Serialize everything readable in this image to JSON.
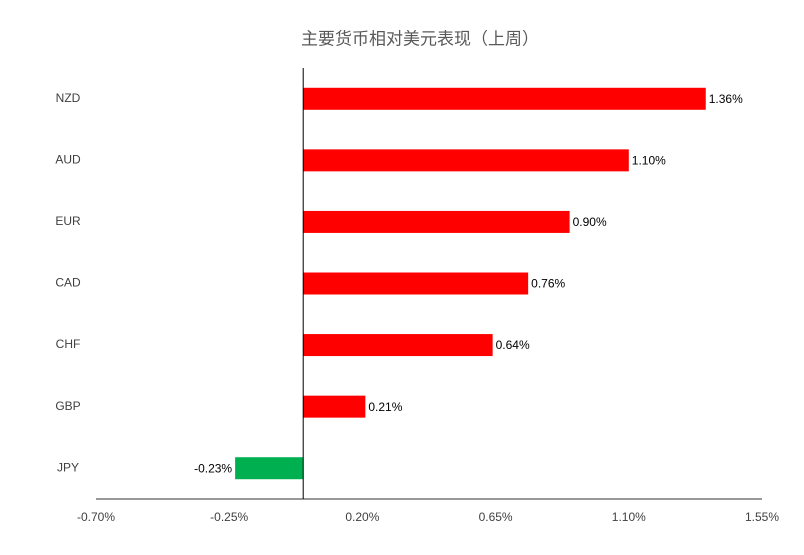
{
  "chart_data": {
    "type": "bar",
    "orientation": "horizontal",
    "title": "主要货币相对美元表现（上周）",
    "categories": [
      "NZD",
      "AUD",
      "EUR",
      "CAD",
      "CHF",
      "GBP",
      "JPY"
    ],
    "values": [
      1.36,
      1.1,
      0.9,
      0.76,
      0.64,
      0.21,
      -0.23
    ],
    "value_labels": [
      "1.36%",
      "1.10%",
      "0.90%",
      "0.76%",
      "0.64%",
      "0.21%",
      "-0.23%"
    ],
    "colors": [
      "#ff0000",
      "#ff0000",
      "#ff0000",
      "#ff0000",
      "#ff0000",
      "#ff0000",
      "#00b050"
    ],
    "xlim": [
      -0.7,
      1.55
    ],
    "xticks": [
      {
        "value": -0.7,
        "label": "-0.70%"
      },
      {
        "value": -0.25,
        "label": "-0.25%"
      },
      {
        "value": 0.2,
        "label": "0.20%"
      },
      {
        "value": 0.65,
        "label": "0.65%"
      },
      {
        "value": 1.1,
        "label": "1.10%"
      },
      {
        "value": 1.55,
        "label": "1.55%"
      }
    ],
    "grid": false
  }
}
